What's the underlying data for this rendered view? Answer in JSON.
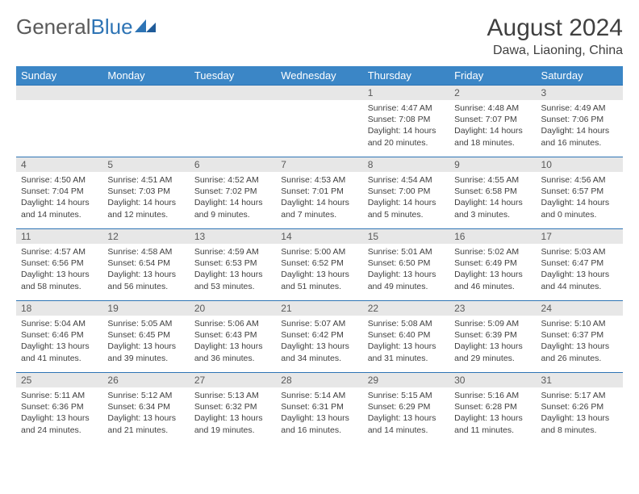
{
  "logo": {
    "text1": "General",
    "text2": "Blue"
  },
  "header": {
    "title": "August 2024",
    "location": "Dawa, Liaoning, China"
  },
  "colors": {
    "header_bg": "#3b86c6",
    "header_text": "#ffffff",
    "border": "#2e74b5",
    "daynum_bg": "#e7e7e7",
    "text": "#404040",
    "logo_gray": "#5a5a5a",
    "logo_blue": "#2e74b5"
  },
  "day_headers": [
    "Sunday",
    "Monday",
    "Tuesday",
    "Wednesday",
    "Thursday",
    "Friday",
    "Saturday"
  ],
  "weeks": [
    [
      {
        "n": "",
        "sunrise": "",
        "sunset": "",
        "daylight1": "",
        "daylight2": ""
      },
      {
        "n": "",
        "sunrise": "",
        "sunset": "",
        "daylight1": "",
        "daylight2": ""
      },
      {
        "n": "",
        "sunrise": "",
        "sunset": "",
        "daylight1": "",
        "daylight2": ""
      },
      {
        "n": "",
        "sunrise": "",
        "sunset": "",
        "daylight1": "",
        "daylight2": ""
      },
      {
        "n": "1",
        "sunrise": "Sunrise: 4:47 AM",
        "sunset": "Sunset: 7:08 PM",
        "daylight1": "Daylight: 14 hours",
        "daylight2": "and 20 minutes."
      },
      {
        "n": "2",
        "sunrise": "Sunrise: 4:48 AM",
        "sunset": "Sunset: 7:07 PM",
        "daylight1": "Daylight: 14 hours",
        "daylight2": "and 18 minutes."
      },
      {
        "n": "3",
        "sunrise": "Sunrise: 4:49 AM",
        "sunset": "Sunset: 7:06 PM",
        "daylight1": "Daylight: 14 hours",
        "daylight2": "and 16 minutes."
      }
    ],
    [
      {
        "n": "4",
        "sunrise": "Sunrise: 4:50 AM",
        "sunset": "Sunset: 7:04 PM",
        "daylight1": "Daylight: 14 hours",
        "daylight2": "and 14 minutes."
      },
      {
        "n": "5",
        "sunrise": "Sunrise: 4:51 AM",
        "sunset": "Sunset: 7:03 PM",
        "daylight1": "Daylight: 14 hours",
        "daylight2": "and 12 minutes."
      },
      {
        "n": "6",
        "sunrise": "Sunrise: 4:52 AM",
        "sunset": "Sunset: 7:02 PM",
        "daylight1": "Daylight: 14 hours",
        "daylight2": "and 9 minutes."
      },
      {
        "n": "7",
        "sunrise": "Sunrise: 4:53 AM",
        "sunset": "Sunset: 7:01 PM",
        "daylight1": "Daylight: 14 hours",
        "daylight2": "and 7 minutes."
      },
      {
        "n": "8",
        "sunrise": "Sunrise: 4:54 AM",
        "sunset": "Sunset: 7:00 PM",
        "daylight1": "Daylight: 14 hours",
        "daylight2": "and 5 minutes."
      },
      {
        "n": "9",
        "sunrise": "Sunrise: 4:55 AM",
        "sunset": "Sunset: 6:58 PM",
        "daylight1": "Daylight: 14 hours",
        "daylight2": "and 3 minutes."
      },
      {
        "n": "10",
        "sunrise": "Sunrise: 4:56 AM",
        "sunset": "Sunset: 6:57 PM",
        "daylight1": "Daylight: 14 hours",
        "daylight2": "and 0 minutes."
      }
    ],
    [
      {
        "n": "11",
        "sunrise": "Sunrise: 4:57 AM",
        "sunset": "Sunset: 6:56 PM",
        "daylight1": "Daylight: 13 hours",
        "daylight2": "and 58 minutes."
      },
      {
        "n": "12",
        "sunrise": "Sunrise: 4:58 AM",
        "sunset": "Sunset: 6:54 PM",
        "daylight1": "Daylight: 13 hours",
        "daylight2": "and 56 minutes."
      },
      {
        "n": "13",
        "sunrise": "Sunrise: 4:59 AM",
        "sunset": "Sunset: 6:53 PM",
        "daylight1": "Daylight: 13 hours",
        "daylight2": "and 53 minutes."
      },
      {
        "n": "14",
        "sunrise": "Sunrise: 5:00 AM",
        "sunset": "Sunset: 6:52 PM",
        "daylight1": "Daylight: 13 hours",
        "daylight2": "and 51 minutes."
      },
      {
        "n": "15",
        "sunrise": "Sunrise: 5:01 AM",
        "sunset": "Sunset: 6:50 PM",
        "daylight1": "Daylight: 13 hours",
        "daylight2": "and 49 minutes."
      },
      {
        "n": "16",
        "sunrise": "Sunrise: 5:02 AM",
        "sunset": "Sunset: 6:49 PM",
        "daylight1": "Daylight: 13 hours",
        "daylight2": "and 46 minutes."
      },
      {
        "n": "17",
        "sunrise": "Sunrise: 5:03 AM",
        "sunset": "Sunset: 6:47 PM",
        "daylight1": "Daylight: 13 hours",
        "daylight2": "and 44 minutes."
      }
    ],
    [
      {
        "n": "18",
        "sunrise": "Sunrise: 5:04 AM",
        "sunset": "Sunset: 6:46 PM",
        "daylight1": "Daylight: 13 hours",
        "daylight2": "and 41 minutes."
      },
      {
        "n": "19",
        "sunrise": "Sunrise: 5:05 AM",
        "sunset": "Sunset: 6:45 PM",
        "daylight1": "Daylight: 13 hours",
        "daylight2": "and 39 minutes."
      },
      {
        "n": "20",
        "sunrise": "Sunrise: 5:06 AM",
        "sunset": "Sunset: 6:43 PM",
        "daylight1": "Daylight: 13 hours",
        "daylight2": "and 36 minutes."
      },
      {
        "n": "21",
        "sunrise": "Sunrise: 5:07 AM",
        "sunset": "Sunset: 6:42 PM",
        "daylight1": "Daylight: 13 hours",
        "daylight2": "and 34 minutes."
      },
      {
        "n": "22",
        "sunrise": "Sunrise: 5:08 AM",
        "sunset": "Sunset: 6:40 PM",
        "daylight1": "Daylight: 13 hours",
        "daylight2": "and 31 minutes."
      },
      {
        "n": "23",
        "sunrise": "Sunrise: 5:09 AM",
        "sunset": "Sunset: 6:39 PM",
        "daylight1": "Daylight: 13 hours",
        "daylight2": "and 29 minutes."
      },
      {
        "n": "24",
        "sunrise": "Sunrise: 5:10 AM",
        "sunset": "Sunset: 6:37 PM",
        "daylight1": "Daylight: 13 hours",
        "daylight2": "and 26 minutes."
      }
    ],
    [
      {
        "n": "25",
        "sunrise": "Sunrise: 5:11 AM",
        "sunset": "Sunset: 6:36 PM",
        "daylight1": "Daylight: 13 hours",
        "daylight2": "and 24 minutes."
      },
      {
        "n": "26",
        "sunrise": "Sunrise: 5:12 AM",
        "sunset": "Sunset: 6:34 PM",
        "daylight1": "Daylight: 13 hours",
        "daylight2": "and 21 minutes."
      },
      {
        "n": "27",
        "sunrise": "Sunrise: 5:13 AM",
        "sunset": "Sunset: 6:32 PM",
        "daylight1": "Daylight: 13 hours",
        "daylight2": "and 19 minutes."
      },
      {
        "n": "28",
        "sunrise": "Sunrise: 5:14 AM",
        "sunset": "Sunset: 6:31 PM",
        "daylight1": "Daylight: 13 hours",
        "daylight2": "and 16 minutes."
      },
      {
        "n": "29",
        "sunrise": "Sunrise: 5:15 AM",
        "sunset": "Sunset: 6:29 PM",
        "daylight1": "Daylight: 13 hours",
        "daylight2": "and 14 minutes."
      },
      {
        "n": "30",
        "sunrise": "Sunrise: 5:16 AM",
        "sunset": "Sunset: 6:28 PM",
        "daylight1": "Daylight: 13 hours",
        "daylight2": "and 11 minutes."
      },
      {
        "n": "31",
        "sunrise": "Sunrise: 5:17 AM",
        "sunset": "Sunset: 6:26 PM",
        "daylight1": "Daylight: 13 hours",
        "daylight2": "and 8 minutes."
      }
    ]
  ]
}
